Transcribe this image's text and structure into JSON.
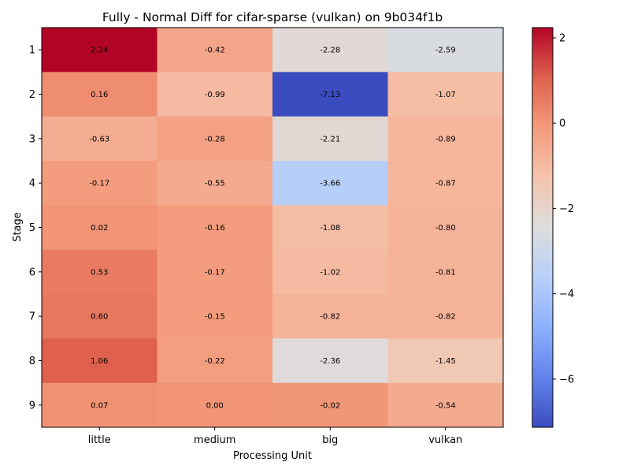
{
  "chart_data": {
    "type": "heatmap",
    "title": "Fully - Normal Diff for cifar-sparse (vulkan) on 9b034f1b",
    "xlabel": "Processing Unit",
    "ylabel": "Stage",
    "x_categories": [
      "little",
      "medium",
      "big",
      "vulkan"
    ],
    "y_categories": [
      "1",
      "2",
      "3",
      "4",
      "5",
      "6",
      "7",
      "8",
      "9"
    ],
    "values": [
      [
        2.24,
        -0.42,
        -2.28,
        -2.59
      ],
      [
        0.16,
        -0.99,
        -7.13,
        -1.07
      ],
      [
        -0.63,
        -0.28,
        -2.21,
        -0.89
      ],
      [
        -0.17,
        -0.55,
        -3.66,
        -0.87
      ],
      [
        0.02,
        -0.16,
        -1.08,
        -0.8
      ],
      [
        0.53,
        -0.17,
        -1.02,
        -0.81
      ],
      [
        0.6,
        -0.15,
        -0.82,
        -0.82
      ],
      [
        1.06,
        -0.22,
        -2.36,
        -1.45
      ],
      [
        0.07,
        0.0,
        -0.02,
        -0.54
      ]
    ],
    "value_labels": [
      [
        "2.24",
        "-0.42",
        "-2.28",
        "-2.59"
      ],
      [
        "0.16",
        "-0.99",
        "-7.13",
        "-1.07"
      ],
      [
        "-0.63",
        "-0.28",
        "-2.21",
        "-0.89"
      ],
      [
        "-0.17",
        "-0.55",
        "-3.66",
        "-0.87"
      ],
      [
        "0.02",
        "-0.16",
        "-1.08",
        "-0.80"
      ],
      [
        "0.53",
        "-0.17",
        "-1.02",
        "-0.81"
      ],
      [
        "0.60",
        "-0.15",
        "-0.82",
        "-0.82"
      ],
      [
        "1.06",
        "-0.22",
        "-2.36",
        "-1.45"
      ],
      [
        "0.07",
        "0.00",
        "-0.02",
        "-0.54"
      ]
    ],
    "colormap": "coolwarm",
    "vmin": -7.13,
    "vmax": 2.24,
    "colorbar": {
      "ticks": [
        2,
        0,
        -2,
        -4,
        -6
      ],
      "tick_labels": [
        "2",
        "0",
        "−2",
        "−4",
        "−6"
      ]
    },
    "grid": false,
    "legend": "none"
  }
}
